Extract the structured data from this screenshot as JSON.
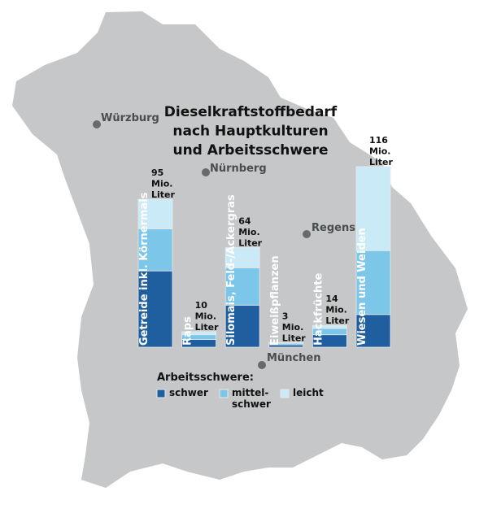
{
  "chart_data": {
    "type": "stacked-bar",
    "title": [
      "Dieselkraftstoffbedarf",
      "nach Hauptkulturen",
      "und Arbeitsschwere"
    ],
    "categories": [
      "Getreide inkl. Körnermais",
      "Raps",
      "Silomais, Feld-/Ackergras",
      "Eiweißpflanzen",
      "Hackfrüchte",
      "Wiesen und Weiden"
    ],
    "series": [
      {
        "name": "schwer",
        "color": "#1f5fa0",
        "values": [
          49,
          5,
          27,
          1.5,
          8,
          21
        ]
      },
      {
        "name": "mittel-\nschwer",
        "color": "#7cc6ea",
        "values": [
          27,
          3,
          24,
          1,
          4,
          41
        ]
      },
      {
        "name": "leicht",
        "color": "#cbeaf7",
        "values": [
          19,
          2,
          13,
          0.5,
          2,
          54
        ]
      }
    ],
    "total_labels": [
      [
        "95",
        "Mio.",
        "Liter"
      ],
      [
        "10",
        "Mio.",
        "Liter"
      ],
      [
        "64",
        "Mio.",
        "Liter"
      ],
      [
        "3",
        "Mio.",
        "Liter"
      ],
      [
        "14",
        "Mio.",
        "Liter"
      ],
      [
        "116",
        "Mio.",
        "Liter"
      ]
    ],
    "legend_title": "Arbeitsschwere:",
    "cities": [
      "Würzburg",
      "Nürnberg",
      "Regensb",
      "München"
    ]
  }
}
